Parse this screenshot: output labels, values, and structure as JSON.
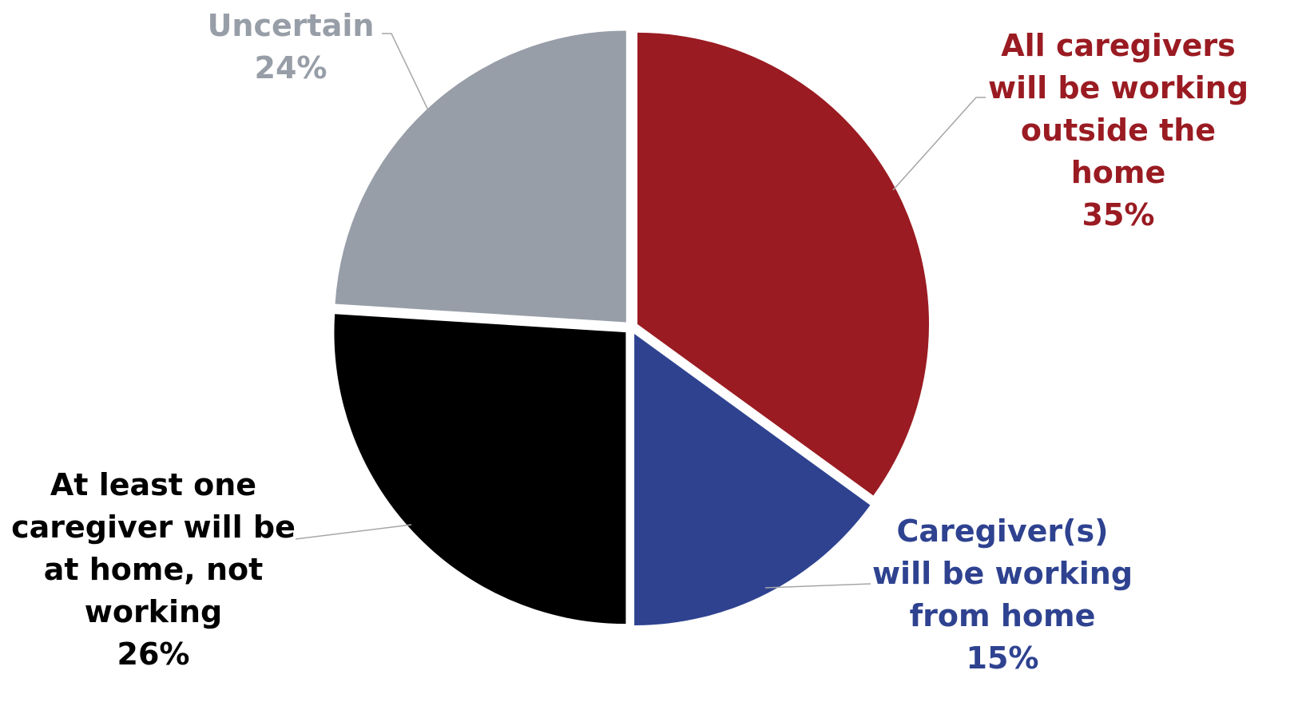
{
  "chart_data": {
    "type": "pie",
    "title": "",
    "slices": [
      {
        "label_lines": [
          "All caregivers",
          "will be working",
          "outside the",
          "home"
        ],
        "value": 35,
        "value_label": "35%",
        "color": "#9a1b22"
      },
      {
        "label_lines": [
          "Caregiver(s)",
          "will be working",
          "from home"
        ],
        "value": 15,
        "value_label": "15%",
        "color": "#2e4290"
      },
      {
        "label_lines": [
          "At least one",
          "caregiver will be",
          "at home, not",
          "working"
        ],
        "value": 26,
        "value_label": "26%",
        "color": "#000000"
      },
      {
        "label_lines": [
          "Uncertain"
        ],
        "value": 24,
        "value_label": "24%",
        "color": "#979ea7"
      }
    ],
    "start_angle": "12 o'clock",
    "direction": "clockwise",
    "legend": "none",
    "slice_separation": "white gaps between slices"
  }
}
